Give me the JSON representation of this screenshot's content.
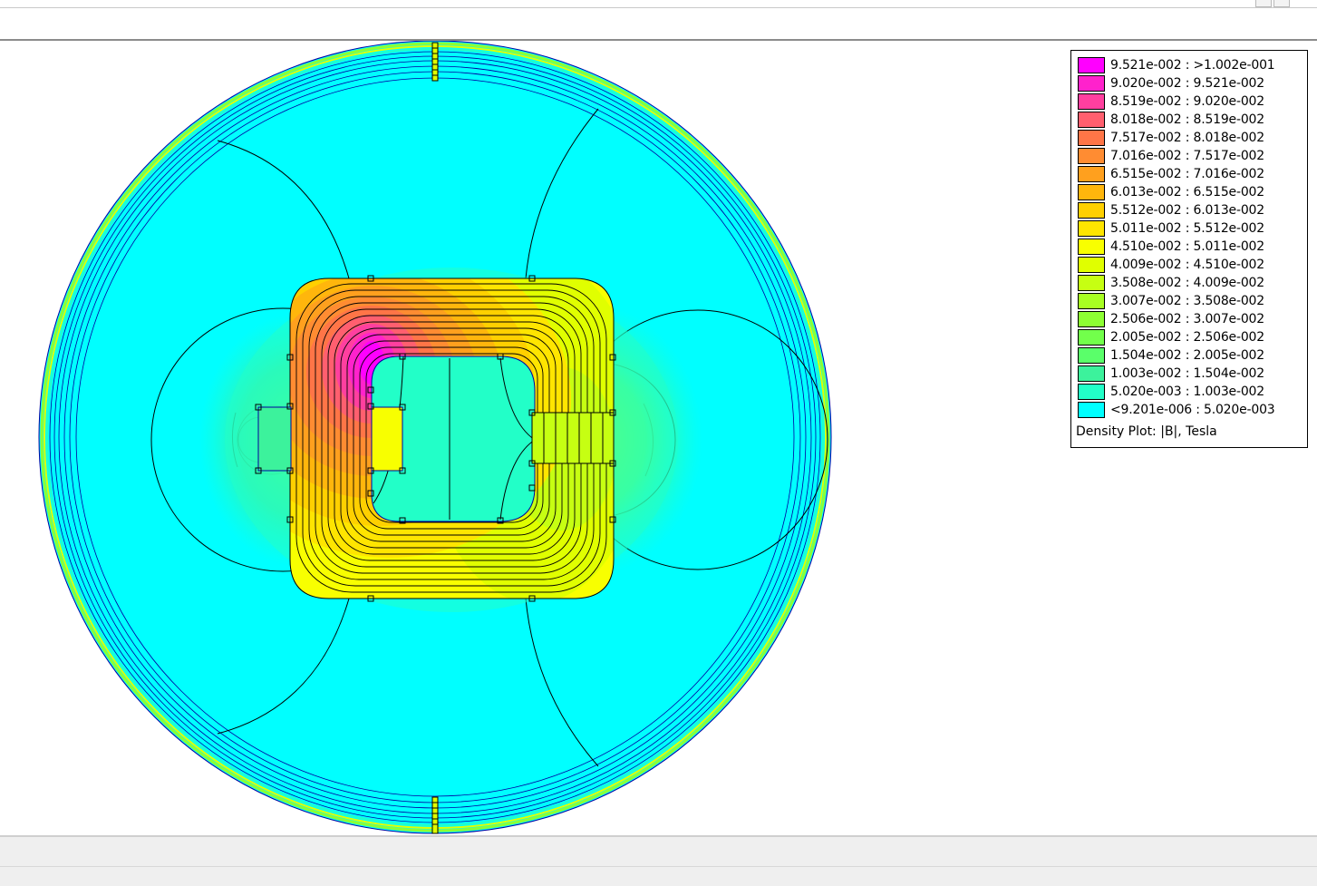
{
  "plot_type": "Density Plot: |B|, Tesla",
  "legend": [
    {
      "label": "9.521e-002 : >1.002e-001",
      "color": "#ff00ff"
    },
    {
      "label": "9.020e-002 : 9.521e-002",
      "color": "#ff22cc"
    },
    {
      "label": "8.519e-002 : 9.020e-002",
      "color": "#ff3f9f"
    },
    {
      "label": "8.018e-002 : 8.519e-002",
      "color": "#ff5f6f"
    },
    {
      "label": "7.517e-002 : 8.018e-002",
      "color": "#ff7547"
    },
    {
      "label": "7.016e-002 : 7.517e-002",
      "color": "#ff8c32"
    },
    {
      "label": "6.515e-002 : 7.016e-002",
      "color": "#ffa01e"
    },
    {
      "label": "6.013e-002 : 6.515e-002",
      "color": "#ffb60c"
    },
    {
      "label": "5.512e-002 : 6.013e-002",
      "color": "#ffd000"
    },
    {
      "label": "5.011e-002 : 5.512e-002",
      "color": "#ffe500"
    },
    {
      "label": "4.510e-002 : 5.011e-002",
      "color": "#f8ff00"
    },
    {
      "label": "4.009e-002 : 4.510e-002",
      "color": "#e0ff00"
    },
    {
      "label": "3.508e-002 : 4.009e-002",
      "color": "#c6ff12"
    },
    {
      "label": "3.007e-002 : 3.508e-002",
      "color": "#a8ff22"
    },
    {
      "label": "2.506e-002 : 3.007e-002",
      "color": "#8dff33"
    },
    {
      "label": "2.005e-002 : 2.506e-002",
      "color": "#72ff4b"
    },
    {
      "label": "1.504e-002 : 2.005e-002",
      "color": "#5aff6a"
    },
    {
      "label": "1.003e-002 : 1.504e-002",
      "color": "#3cf29c"
    },
    {
      "label": "5.020e-003 : 1.003e-002",
      "color": "#22ffc8"
    },
    {
      "label": "<9.201e-006 : 5.020e-003",
      "color": "#00ffff"
    }
  ]
}
